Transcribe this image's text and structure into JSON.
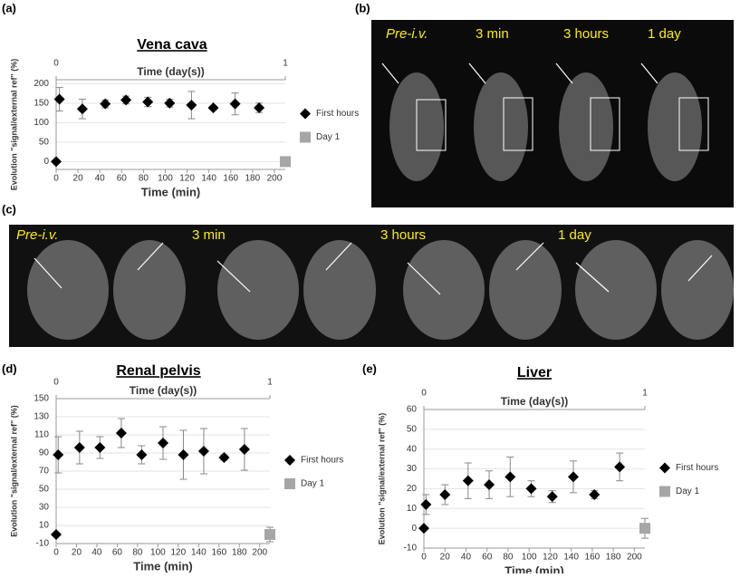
{
  "chart_data": [
    {
      "type": "scatter",
      "panel_label": "(a)",
      "title": "Vena cava",
      "xlabel": "Time (min)",
      "x2label": "Time (day(s))",
      "ylabel": "Evolution \"signal/external ref\" (%)",
      "xlim": [
        0,
        210
      ],
      "xticks": [
        0,
        20,
        40,
        60,
        80,
        100,
        120,
        140,
        160,
        180,
        200
      ],
      "x2lim": [
        0,
        1
      ],
      "x2ticks": [
        0,
        1
      ],
      "ylim": [
        -20,
        210
      ],
      "yticks": [
        0,
        50,
        100,
        150,
        200
      ],
      "legend": "right",
      "series": [
        {
          "name": "First hours",
          "color": "#000000",
          "marker": "diamond",
          "x": [
            0,
            3,
            24,
            45,
            64,
            84,
            104,
            124,
            144,
            164,
            186
          ],
          "values": [
            0,
            160,
            135,
            148,
            158,
            153,
            150,
            145,
            138,
            148,
            138
          ],
          "errors": [
            0,
            30,
            25,
            10,
            10,
            12,
            10,
            35,
            5,
            28,
            12
          ]
        },
        {
          "name": "Day 1",
          "color": "#a6a6a6",
          "marker": "square",
          "axis": "x2",
          "x": [
            1
          ],
          "values": [
            0
          ],
          "errors": [
            5
          ]
        }
      ]
    },
    {
      "type": "scatter",
      "panel_label": "(d)",
      "title": "Renal pelvis",
      "xlabel": "Time (min)",
      "x2label": "Time (day(s))",
      "ylabel": "Evolution \"signal/external ref\" (%)",
      "xlim": [
        0,
        210
      ],
      "xticks": [
        0,
        20,
        40,
        60,
        80,
        100,
        120,
        140,
        160,
        180,
        200
      ],
      "x2lim": [
        0,
        1
      ],
      "x2ticks": [
        0,
        1
      ],
      "ylim": [
        -10,
        150
      ],
      "yticks": [
        -10,
        10,
        30,
        50,
        70,
        90,
        110,
        130,
        150
      ],
      "legend": "right",
      "series": [
        {
          "name": "First hours",
          "color": "#000000",
          "marker": "diamond",
          "x": [
            0,
            2,
            23,
            43,
            64,
            84,
            105,
            125,
            145,
            165,
            185
          ],
          "values": [
            0,
            88,
            96,
            96,
            112,
            88,
            101,
            88,
            92,
            85,
            94
          ],
          "errors": [
            0,
            20,
            18,
            12,
            16,
            10,
            18,
            27,
            25,
            3,
            23
          ]
        },
        {
          "name": "Day 1",
          "color": "#a6a6a6",
          "marker": "square",
          "axis": "x2",
          "x": [
            1
          ],
          "values": [
            0
          ],
          "errors": [
            8
          ]
        }
      ]
    },
    {
      "type": "scatter",
      "panel_label": "(e)",
      "title": "Liver",
      "xlabel": "Time (min)",
      "x2label": "Time (day(s))",
      "ylabel": "Evolution \"signal/external ref\" (%)",
      "xlim": [
        0,
        210
      ],
      "xticks": [
        0,
        20,
        40,
        60,
        80,
        100,
        120,
        140,
        160,
        180,
        200
      ],
      "x2lim": [
        0,
        1
      ],
      "x2ticks": [
        0,
        1
      ],
      "ylim": [
        -10,
        60
      ],
      "yticks": [
        -10,
        0,
        10,
        20,
        30,
        40,
        50,
        60
      ],
      "legend": "right",
      "series": [
        {
          "name": "First hours",
          "color": "#000000",
          "marker": "diamond",
          "x": [
            0,
            2,
            20,
            42,
            62,
            82,
            102,
            122,
            142,
            162,
            186
          ],
          "values": [
            0,
            12,
            17,
            24,
            22,
            26,
            20,
            16,
            26,
            17,
            31
          ],
          "errors": [
            0,
            5,
            5,
            9,
            7,
            10,
            4,
            3,
            8,
            2,
            7
          ]
        },
        {
          "name": "Day 1",
          "color": "#a6a6a6",
          "marker": "square",
          "axis": "x2",
          "x": [
            1
          ],
          "values": [
            0
          ],
          "errors": [
            5
          ]
        }
      ]
    }
  ],
  "images": [
    {
      "label": "(b)",
      "captions": [
        "Pre-i.v.",
        "3 min",
        "3 hours",
        "1 day"
      ]
    },
    {
      "label": "(c)",
      "captions": [
        "Pre-i.v.",
        "3 min",
        "3 hours",
        "1 day"
      ]
    }
  ]
}
